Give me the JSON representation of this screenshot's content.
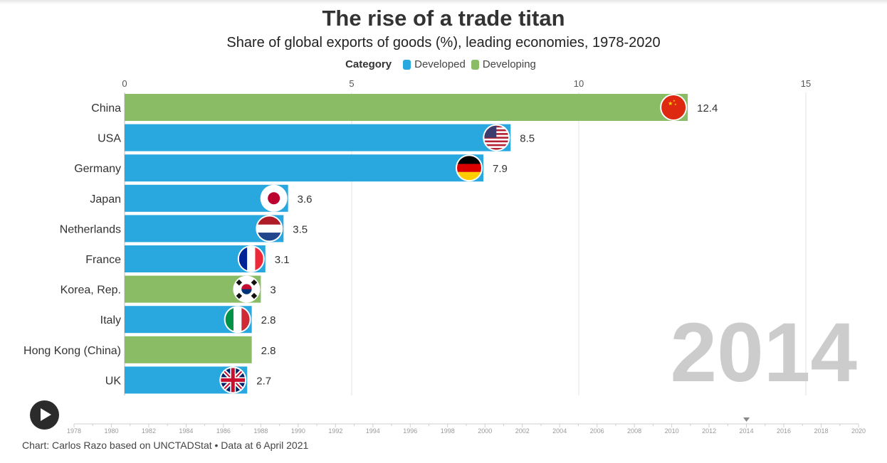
{
  "header": {
    "title": "The rise of a trade titan",
    "subtitle": "Share of global exports of goods (%), leading economies, 1978-2020"
  },
  "legend": {
    "title": "Category",
    "items": [
      {
        "label": "Developed",
        "color": "#29a8e0"
      },
      {
        "label": "Developing",
        "color": "#89bc64"
      }
    ]
  },
  "chart_data": {
    "type": "bar",
    "orientation": "horizontal",
    "categories": [
      "China",
      "USA",
      "Germany",
      "Japan",
      "Netherlands",
      "France",
      "Korea, Rep.",
      "Italy",
      "Hong Kong (China)",
      "UK"
    ],
    "values": [
      12.4,
      8.5,
      7.9,
      3.6,
      3.5,
      3.1,
      3,
      2.8,
      2.8,
      2.7
    ],
    "value_labels": [
      "12.4",
      "8.5",
      "7.9",
      "3.6",
      "3.5",
      "3.1",
      "3",
      "2.8",
      "2.8",
      "2.7"
    ],
    "groups": [
      "Developing",
      "Developed",
      "Developed",
      "Developed",
      "Developed",
      "Developed",
      "Developing",
      "Developed",
      "Developing",
      "Developed"
    ],
    "flags": [
      "china-flag-icon",
      "usa-flag-icon",
      "germany-flag-icon",
      "japan-flag-icon",
      "netherlands-flag-icon",
      "france-flag-icon",
      "korea-flag-icon",
      "italy-flag-icon",
      "",
      "uk-flag-icon"
    ],
    "xlim": [
      0,
      16
    ],
    "x_ticks": [
      0,
      5,
      10,
      15
    ],
    "grid": true,
    "legend_position": "top-center",
    "year": "2014"
  },
  "timeline": {
    "years": [
      "1978",
      "1980",
      "1982",
      "1984",
      "1986",
      "1988",
      "1990",
      "1992",
      "1994",
      "1996",
      "1998",
      "2000",
      "2002",
      "2004",
      "2006",
      "2008",
      "2010",
      "2012",
      "2014",
      "2016",
      "2018",
      "2020"
    ],
    "current": "2014",
    "start": 1978,
    "end": 2020
  },
  "footer": {
    "source": "Chart: Carlos Razo based on UNCTADStat • Data at 6 April 2021"
  }
}
